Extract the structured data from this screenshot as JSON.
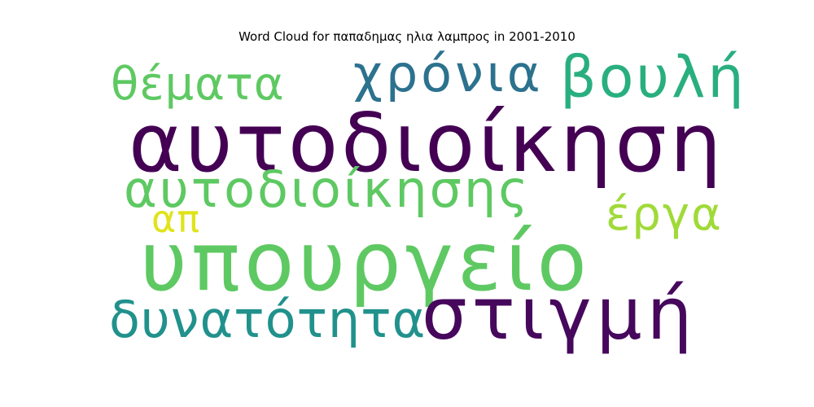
{
  "title": "Word Cloud for παπαδημας ηλια λαμπρος in 2001-2010",
  "chart_data": {
    "type": "wordcloud",
    "title": "Word Cloud for παπαδημας ηλια λαμπρος in 2001-2010",
    "words": [
      {
        "text": "αυτοδιοίκηση",
        "color": "#440154"
      },
      {
        "text": "υπουργείο",
        "color": "#5ec962"
      },
      {
        "text": "στιγμή",
        "color": "#46085c"
      },
      {
        "text": "αυτοδιοίκησης",
        "color": "#5ec962"
      },
      {
        "text": "δυνατότητα",
        "color": "#21918c"
      },
      {
        "text": "χρόνια",
        "color": "#2c728e"
      },
      {
        "text": "βουλή",
        "color": "#29af7f"
      },
      {
        "text": "θέματα",
        "color": "#5ec962"
      },
      {
        "text": "έργα",
        "color": "#a0da39"
      },
      {
        "text": "απ",
        "color": "#e0e31a"
      }
    ]
  }
}
